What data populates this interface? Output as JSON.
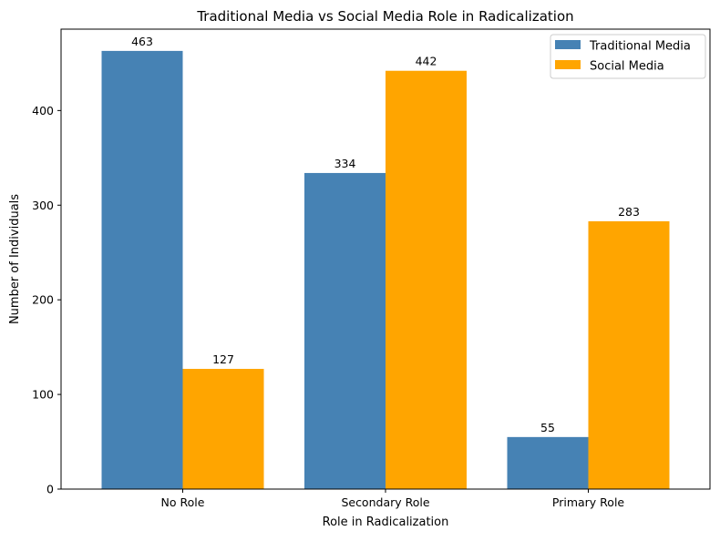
{
  "chart_data": {
    "type": "bar",
    "title": "Traditional Media vs Social Media Role in Radicalization",
    "xlabel": "Role in Radicalization",
    "ylabel": "Number of Individuals",
    "categories": [
      "No Role",
      "Secondary Role",
      "Primary Role"
    ],
    "series": [
      {
        "name": "Traditional Media",
        "color": "#4682b4",
        "values": [
          463,
          334,
          55
        ]
      },
      {
        "name": "Social Media",
        "color": "#ffa500",
        "values": [
          127,
          442,
          283
        ]
      }
    ],
    "yticks": [
      0,
      100,
      200,
      300,
      400
    ],
    "ylim": [
      0,
      486
    ],
    "grid": false,
    "legend_position": "top-right"
  }
}
